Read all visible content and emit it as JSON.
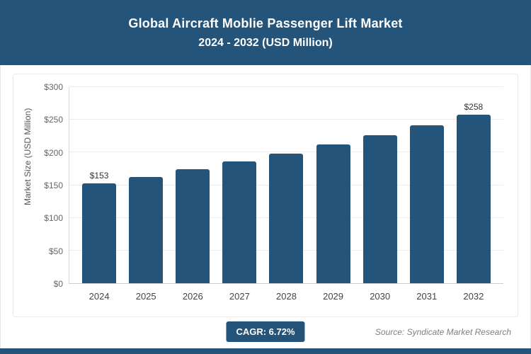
{
  "header": {
    "title_line1": "Global Aircraft Moblie Passenger Lift Market",
    "title_line2": "2024 - 2032 (USD Million)"
  },
  "chart_data": {
    "type": "bar",
    "title": "Global Aircraft Moblie Passenger Lift Market",
    "subtitle": "2024 - 2032 (USD Million)",
    "categories": [
      "2024",
      "2025",
      "2026",
      "2027",
      "2028",
      "2029",
      "2030",
      "2031",
      "2032"
    ],
    "values": [
      153,
      163,
      174,
      186,
      198,
      212,
      226,
      241,
      258
    ],
    "bar_labels": [
      "$153",
      "",
      "",
      "",
      "",
      "",
      "",
      "",
      "$258"
    ],
    "xlabel": "",
    "ylabel": "Market Size (USD Million)",
    "ylim": [
      0,
      300
    ],
    "yticks": [
      "$0",
      "$50",
      "$100",
      "$150",
      "$200",
      "$250",
      "$300"
    ],
    "grid": true,
    "legend": "none"
  },
  "footer": {
    "cagr_label": "CAGR: 6.72%",
    "source": "Source: Syndicate Market Research"
  },
  "colors": {
    "header_bg": "#24547a",
    "bar": "#24547a",
    "strip": "#24547a",
    "grid": "#e9ebee"
  }
}
